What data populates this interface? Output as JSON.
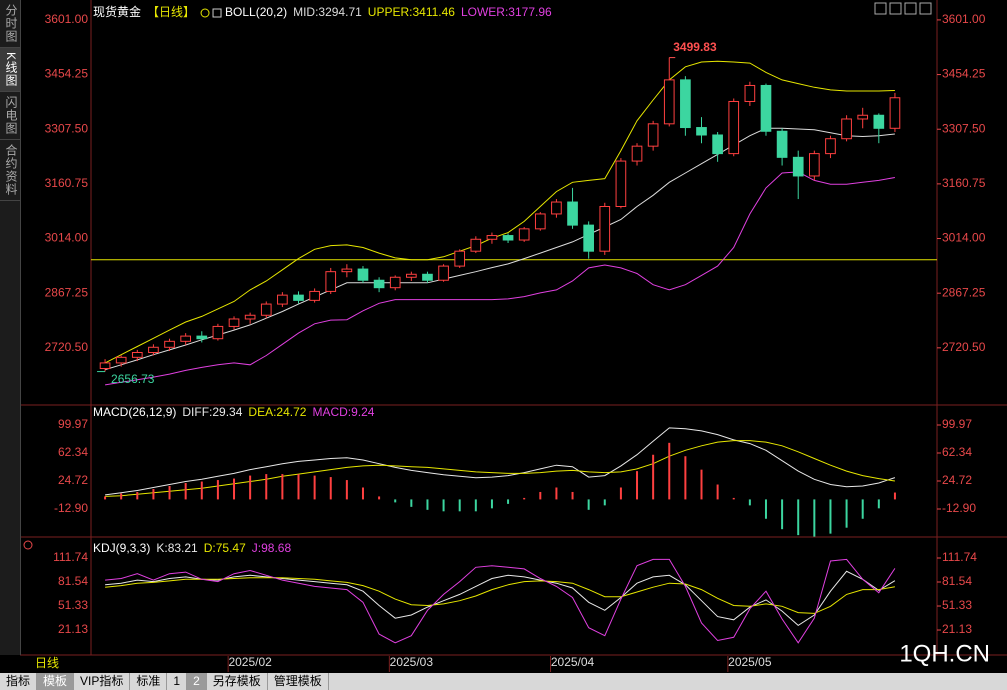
{
  "chart_data": [
    {
      "type": "candlestick",
      "title": "现货黄金",
      "subtitle": "【日线】",
      "indicator": "BOLL(20,2)",
      "up_color": "#ff4040",
      "down_color": "#3cd6a0",
      "tick_color": "#e8484a",
      "ylim": [
        2567,
        3633
      ],
      "yticks": [
        {
          "value": 3601,
          "label": "3601.00"
        },
        {
          "value": 3454.25,
          "label": "3454.25"
        },
        {
          "value": 3307.5,
          "label": "3307.50"
        },
        {
          "value": 3160.75,
          "label": "3160.75"
        },
        {
          "value": 3014,
          "label": "3014.00"
        },
        {
          "value": 2867.25,
          "label": "2867.25"
        },
        {
          "value": 2720.5,
          "label": "2720.50"
        }
      ],
      "hline": 2957,
      "hline_color": "#e6e600",
      "max_color": "#ff5050",
      "min_color": "#3cd6a0",
      "ohlc": [
        [
          2665,
          2690,
          2656.73,
          2680
        ],
        [
          2680,
          2700,
          2670,
          2695
        ],
        [
          2695,
          2715,
          2685,
          2708
        ],
        [
          2708,
          2730,
          2700,
          2722
        ],
        [
          2722,
          2745,
          2712,
          2738
        ],
        [
          2738,
          2760,
          2728,
          2752
        ],
        [
          2752,
          2765,
          2735,
          2745
        ],
        [
          2745,
          2785,
          2740,
          2778
        ],
        [
          2778,
          2805,
          2770,
          2798
        ],
        [
          2798,
          2815,
          2785,
          2808
        ],
        [
          2808,
          2845,
          2800,
          2838
        ],
        [
          2838,
          2870,
          2830,
          2862
        ],
        [
          2862,
          2872,
          2840,
          2848
        ],
        [
          2848,
          2880,
          2842,
          2872
        ],
        [
          2872,
          2935,
          2865,
          2925
        ],
        [
          2925,
          2945,
          2910,
          2932
        ],
        [
          2932,
          2940,
          2895,
          2902
        ],
        [
          2902,
          2910,
          2870,
          2882
        ],
        [
          2882,
          2915,
          2875,
          2910
        ],
        [
          2910,
          2925,
          2900,
          2918
        ],
        [
          2918,
          2925,
          2895,
          2902
        ],
        [
          2902,
          2945,
          2898,
          2940
        ],
        [
          2940,
          2985,
          2935,
          2980
        ],
        [
          2980,
          3020,
          2975,
          3012
        ],
        [
          3012,
          3030,
          3000,
          3022
        ],
        [
          3022,
          3028,
          3002,
          3010
        ],
        [
          3010,
          3045,
          3005,
          3040
        ],
        [
          3040,
          3085,
          3035,
          3080
        ],
        [
          3080,
          3120,
          3070,
          3112
        ],
        [
          3112,
          3150,
          3040,
          3050
        ],
        [
          3050,
          3060,
          2960,
          2980
        ],
        [
          2980,
          3110,
          2970,
          3100
        ],
        [
          3100,
          3230,
          3095,
          3222
        ],
        [
          3222,
          3270,
          3210,
          3262
        ],
        [
          3262,
          3330,
          3250,
          3322
        ],
        [
          3322,
          3499.83,
          3315,
          3440
        ],
        [
          3440,
          3450,
          3290,
          3312
        ],
        [
          3312,
          3340,
          3270,
          3292
        ],
        [
          3292,
          3300,
          3220,
          3242
        ],
        [
          3242,
          3390,
          3235,
          3382
        ],
        [
          3382,
          3435,
          3370,
          3425
        ],
        [
          3425,
          3430,
          3290,
          3302
        ],
        [
          3302,
          3310,
          3210,
          3232
        ],
        [
          3232,
          3250,
          3120,
          3182
        ],
        [
          3182,
          3250,
          3170,
          3242
        ],
        [
          3242,
          3290,
          3230,
          3282
        ],
        [
          3282,
          3345,
          3275,
          3335
        ],
        [
          3335,
          3365,
          3310,
          3345
        ],
        [
          3345,
          3350,
          3270,
          3310
        ],
        [
          3310,
          3405,
          3300,
          3392
        ]
      ],
      "series": [
        {
          "name": "MID:3294.71",
          "color": "#dcdcdc",
          "values": [
            2662,
            2675,
            2688,
            2702,
            2715,
            2728,
            2742,
            2755,
            2768,
            2782,
            2800,
            2818,
            2838,
            2857,
            2876,
            2895,
            2895,
            2895,
            2895,
            2895,
            2895,
            2905,
            2915,
            2925,
            2936,
            2946,
            2960,
            2975,
            2990,
            3005,
            3025,
            3045,
            3065,
            3100,
            3130,
            3165,
            3190,
            3215,
            3240,
            3265,
            3290,
            3310,
            3310,
            3308,
            3306,
            3298,
            3290,
            3288,
            3290,
            3294.71
          ]
        },
        {
          "name": "UPPER:3411.46",
          "color": "#e6e600",
          "values": [
            2680,
            2702,
            2724,
            2746,
            2768,
            2790,
            2805,
            2825,
            2845,
            2876,
            2900,
            2930,
            2960,
            2985,
            2995,
            2997,
            2990,
            2975,
            2962,
            2957,
            2957,
            2965,
            2980,
            2995,
            3015,
            3030,
            3060,
            3100,
            3140,
            3165,
            3170,
            3175,
            3250,
            3330,
            3386,
            3440,
            3475,
            3488,
            3490,
            3488,
            3485,
            3460,
            3440,
            3430,
            3420,
            3413,
            3410,
            3410,
            3410,
            3411.46
          ]
        },
        {
          "name": "LOWER:3177.96",
          "color": "#e040e0",
          "values": [
            2621,
            2628,
            2635,
            2642,
            2650,
            2660,
            2668,
            2675,
            2680,
            2675,
            2700,
            2730,
            2760,
            2785,
            2795,
            2796,
            2820,
            2840,
            2850,
            2850,
            2850,
            2850,
            2850,
            2850,
            2850,
            2852,
            2858,
            2868,
            2876,
            2900,
            2935,
            2943,
            2935,
            2920,
            2890,
            2876,
            2890,
            2915,
            2940,
            2990,
            3080,
            3150,
            3190,
            3193,
            3170,
            3160,
            3160,
            3165,
            3170,
            3177.96
          ]
        }
      ]
    },
    {
      "type": "line",
      "indicator": "MACD(26,12,9)",
      "tick_color": "#e8484a",
      "ylim": [
        -50.5,
        122.8
      ],
      "yticks": [
        99.97,
        62.34,
        24.72,
        {
          "value": -12.9,
          "label": "-12.90"
        }
      ],
      "series": [
        {
          "name": "DIFF:29.34",
          "color": "#e8e8e8",
          "values": [
            6,
            9,
            12,
            16,
            20,
            24,
            27,
            31,
            35,
            40,
            44,
            48,
            51,
            53,
            55,
            56,
            53,
            48,
            43,
            39,
            36,
            33,
            31,
            29,
            30,
            32,
            36,
            41,
            46,
            44,
            30,
            32,
            45,
            60,
            78,
            96,
            95,
            92,
            87,
            80,
            75,
            66,
            52,
            38,
            27,
            20,
            17,
            18,
            22,
            29.34
          ]
        },
        {
          "name": "DEA:24.72",
          "color": "#e6e600",
          "values": [
            4,
            5,
            7,
            9,
            11,
            13,
            15,
            18,
            21,
            24,
            27,
            31,
            34,
            37,
            40,
            43,
            45,
            46,
            45,
            44,
            43,
            41,
            39,
            37,
            36,
            35,
            35,
            36,
            38,
            39,
            37,
            36,
            37,
            41,
            48,
            58,
            66,
            72,
            77,
            79,
            79,
            77,
            72,
            64,
            55,
            46,
            38,
            32,
            28,
            24.72
          ]
        },
        {
          "name": "MACD:9.24",
          "type": "bar",
          "color": "#ff4040",
          "negative_color": "#3cd6a0",
          "legend_color": "#e040e0",
          "values": [
            4,
            8,
            10,
            14,
            18,
            22,
            24,
            26,
            28,
            32,
            34,
            34,
            34,
            32,
            30,
            26,
            16,
            4,
            -4,
            -10,
            -14,
            -16,
            -16,
            -16,
            -12,
            -6,
            2,
            10,
            16,
            10,
            -14,
            -8,
            16,
            38,
            60,
            76,
            58,
            40,
            20,
            2,
            -8,
            -26,
            -40,
            -48,
            -50,
            -46,
            -38,
            -26,
            -12,
            9.24
          ]
        }
      ]
    },
    {
      "type": "line",
      "indicator": "KDJ(9,3,3)",
      "tick_color": "#e8484a",
      "ylim": [
        -10.3,
        134.4
      ],
      "yticks": [
        111.74,
        81.54,
        51.33,
        21.13
      ],
      "categories": [
        null,
        null,
        null,
        null,
        null,
        null,
        null,
        null,
        null,
        "2025/02",
        null,
        null,
        null,
        null,
        null,
        null,
        null,
        null,
        null,
        "2025/03",
        null,
        null,
        null,
        null,
        null,
        null,
        null,
        null,
        null,
        "2025/04",
        null,
        null,
        null,
        null,
        null,
        null,
        null,
        null,
        null,
        null,
        "2025/05",
        null,
        null,
        null,
        null,
        null,
        null,
        null,
        null,
        null
      ],
      "series": [
        {
          "name": "K:83.21",
          "color": "#e8e8e8",
          "values": [
            78,
            80,
            84,
            82,
            86,
            88,
            85,
            84,
            88,
            90,
            88,
            86,
            84,
            82,
            80,
            78,
            70,
            52,
            36,
            40,
            50,
            58,
            66,
            76,
            86,
            90,
            88,
            84,
            80,
            74,
            56,
            46,
            62,
            80,
            88,
            90,
            78,
            58,
            38,
            34,
            50,
            59,
            45,
            27,
            40,
            70,
            95,
            85,
            71,
            83.21
          ]
        },
        {
          "name": "D:75.47",
          "color": "#e6e600",
          "values": [
            75,
            77,
            80,
            81,
            83,
            85,
            85,
            85,
            86,
            87,
            87,
            87,
            86,
            85,
            83,
            81,
            77,
            70,
            60,
            53,
            52,
            54,
            58,
            64,
            72,
            78,
            82,
            83,
            82,
            80,
            72,
            63,
            63,
            69,
            75,
            80,
            79,
            72,
            61,
            52,
            51,
            54,
            51,
            43,
            42,
            51,
            66,
            72,
            72,
            75.47
          ]
        },
        {
          "name": "J:98.68",
          "color": "#e040e0",
          "values": [
            84,
            86,
            92,
            84,
            92,
            94,
            85,
            82,
            92,
            96,
            90,
            84,
            80,
            76,
            74,
            72,
            56,
            16,
            5,
            14,
            46,
            66,
            82,
            100,
            102,
            100,
            98,
            86,
            76,
            62,
            24,
            14,
            60,
            102,
            110,
            110,
            76,
            30,
            8,
            12,
            48,
            70,
            35,
            5,
            36,
            108,
            110,
            85,
            68,
            98.68
          ]
        }
      ]
    }
  ],
  "period": "日线",
  "watermark": "1QH.CN",
  "sidebar_tabs": [
    {
      "label": "分时图"
    },
    {
      "label": "K线图",
      "active": true
    },
    {
      "label": "闪电图"
    },
    {
      "label": "合约资料"
    }
  ],
  "toolbar": [
    {
      "label": "指标"
    },
    {
      "label": "模板",
      "active": true
    },
    {
      "label": "VIP指标"
    },
    {
      "label": "标准"
    },
    {
      "label": "1"
    },
    {
      "label": "2",
      "active": true
    },
    {
      "label": "另存模板"
    },
    {
      "label": "管理模板"
    }
  ]
}
